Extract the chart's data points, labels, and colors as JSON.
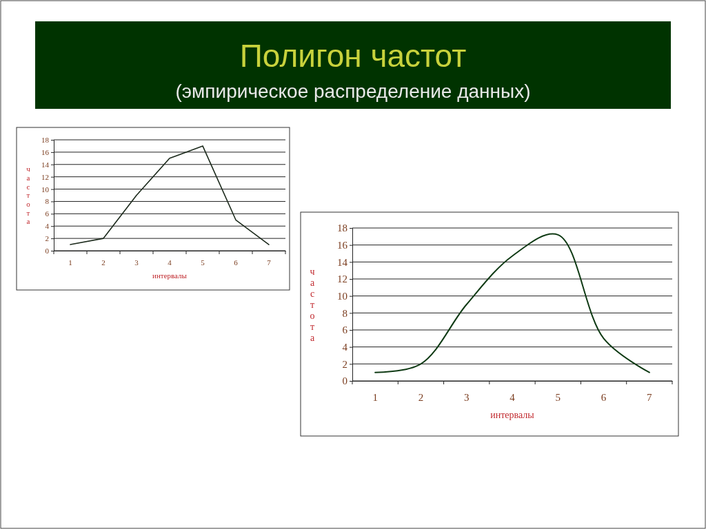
{
  "chart_data": [
    {
      "type": "line",
      "title": "Полигон частот",
      "subtitle": "(эмпирическое распределение данных)",
      "xlabel": "интервалы",
      "ylabel": "частота",
      "categories": [
        "1",
        "2",
        "3",
        "4",
        "5",
        "6",
        "7"
      ],
      "series": [
        {
          "color": "#1c2a1c",
          "values": [
            1,
            2,
            9,
            15,
            17,
            5,
            1
          ]
        }
      ],
      "ylim": [
        0,
        18
      ],
      "yticks": [
        0,
        2,
        4,
        6,
        8,
        10,
        12,
        14,
        16,
        18
      ],
      "grid": "y",
      "marker": "none"
    },
    {
      "type": "line",
      "xlabel": "интервалы",
      "ylabel": "частота",
      "categories": [
        "1",
        "2",
        "3",
        "4",
        "5",
        "6",
        "7"
      ],
      "series": [
        {
          "color": "#0f3a14",
          "values": [
            1,
            2,
            9,
            14.7,
            17.2,
            5,
            1
          ]
        }
      ],
      "ylim": [
        0,
        18
      ],
      "yticks": [
        0,
        2,
        4,
        6,
        8,
        10,
        12,
        14,
        16,
        18
      ],
      "grid": "y",
      "marker": "none"
    }
  ]
}
